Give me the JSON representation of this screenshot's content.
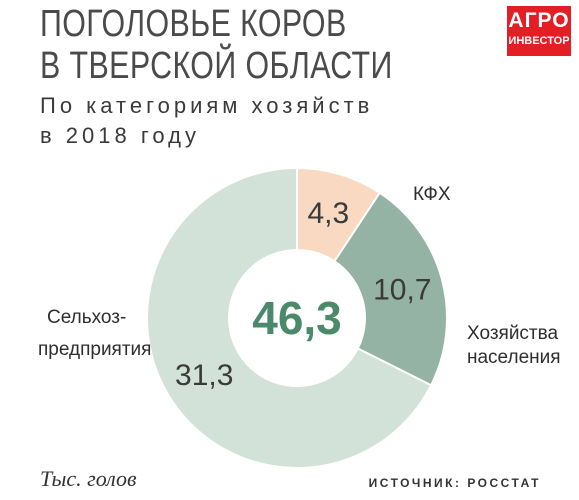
{
  "header": {
    "title_line1": "ПОГОЛОВЬЕ КОРОВ",
    "title_line2": "В ТВЕРСКОЙ ОБЛАСТИ",
    "subtitle_line1": "По категориям хозяйств",
    "subtitle_line2": "в 2018 году"
  },
  "logo": {
    "line1": "АГРО",
    "line2": "ИНВЕСТОР"
  },
  "chart_data": {
    "type": "pie",
    "variant": "donut",
    "total": 46.3,
    "total_label": "46,3",
    "slices": [
      {
        "name": "КФХ",
        "value": 4.3,
        "value_label": "4,3",
        "color": "#f9d9c1"
      },
      {
        "name": "Хозяйства населения",
        "value": 10.7,
        "value_label": "10,7",
        "color": "#95b3a4"
      },
      {
        "name": "Сельхоз-предприятия",
        "value": 31.3,
        "value_label": "31,3",
        "color": "#d2e2d9"
      }
    ],
    "unit": "Тыс. голов",
    "total_color": "#4a8a6a"
  },
  "labels": {
    "kfh": "КФХ",
    "households_line1": "Хозяйства",
    "households_line2": "населения",
    "agri_line1": "Сельхоз-",
    "agri_line2": "предприятия"
  },
  "footer": {
    "unit": "Тыс. голов",
    "source": "ИСТОЧНИК: РОССТАТ"
  }
}
